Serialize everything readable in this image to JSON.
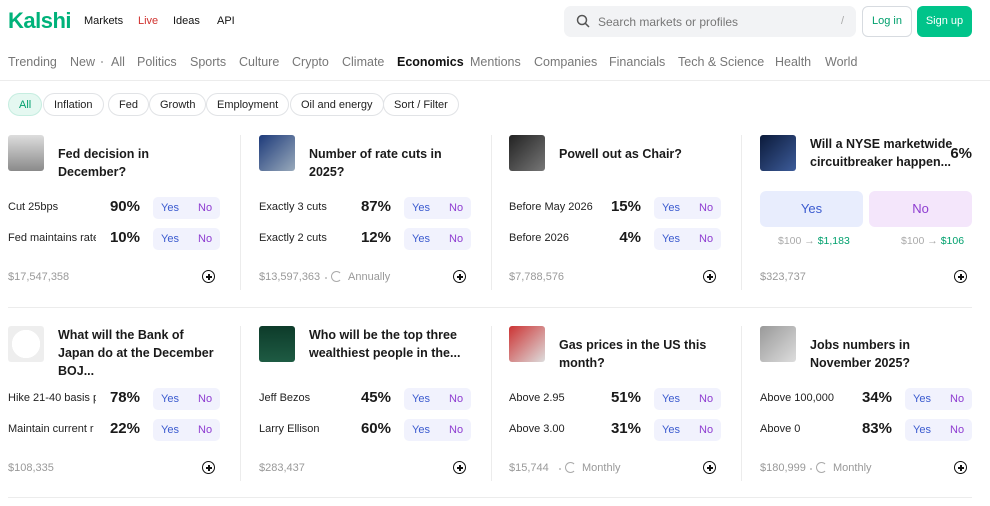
{
  "header": {
    "logo": "Kalshi",
    "nav": [
      "Markets",
      "Live",
      "Ideas",
      "API"
    ],
    "search_placeholder": "Search markets or profiles",
    "search_shortcut": "/",
    "login": "Log in",
    "signup": "Sign up"
  },
  "categories": [
    "Trending",
    "New",
    "All",
    "Politics",
    "Sports",
    "Culture",
    "Crypto",
    "Climate",
    "Economics",
    "Mentions",
    "Companies",
    "Financials",
    "Tech & Science",
    "Health",
    "World"
  ],
  "filters": [
    "All",
    "Inflation",
    "Fed",
    "Growth",
    "Employment",
    "Oil and energy",
    "Sort / Filter"
  ],
  "buttons": {
    "yes": "Yes",
    "no": "No"
  },
  "markets": [
    {
      "title": "Fed decision in December?",
      "outcomes": [
        {
          "label": "Cut 25bps",
          "chance": "90%"
        },
        {
          "label": "Fed maintains rate",
          "chance": "10%"
        }
      ],
      "volume": "$17,547,358"
    },
    {
      "title": "Number of rate cuts in 2025?",
      "outcomes": [
        {
          "label": "Exactly 3 cuts",
          "chance": "87%"
        },
        {
          "label": "Exactly 2 cuts",
          "chance": "12%"
        }
      ],
      "volume": "$13,597,363",
      "frequency": "Annually"
    },
    {
      "title": "Powell out as Chair?",
      "outcomes": [
        {
          "label": "Before May 2026",
          "chance": "15%"
        },
        {
          "label": "Before 2026",
          "chance": "4%"
        }
      ],
      "volume": "$7,788,576"
    },
    {
      "title": "Will a NYSE marketwide circuitbreaker happen...",
      "chance": "6%",
      "payouts": [
        {
          "stake": "$100",
          "payout": "$1,183"
        },
        {
          "stake": "$100",
          "payout": "$106"
        }
      ],
      "volume": "$323,737"
    },
    {
      "title": "What will the Bank of Japan do at the December BOJ...",
      "outcomes": [
        {
          "label": "Hike 21-40 basis p",
          "chance": "78%"
        },
        {
          "label": "Maintain current r",
          "chance": "22%"
        }
      ],
      "volume": "$108,335"
    },
    {
      "title": "Who will be the top three wealthiest people in the...",
      "outcomes": [
        {
          "label": "Jeff Bezos",
          "chance": "45%"
        },
        {
          "label": "Larry Ellison",
          "chance": "60%"
        }
      ],
      "volume": "$283,437"
    },
    {
      "title": "Gas prices in the US this month?",
      "outcomes": [
        {
          "label": "Above 2.95",
          "chance": "51%"
        },
        {
          "label": "Above 3.00",
          "chance": "31%"
        }
      ],
      "volume": "$15,744",
      "frequency": "Monthly"
    },
    {
      "title": "Jobs numbers in November 2025?",
      "outcomes": [
        {
          "label": "Above 100,000",
          "chance": "34%"
        },
        {
          "label": "Above 0",
          "chance": "83%"
        }
      ],
      "volume": "$180,999",
      "frequency": "Monthly"
    }
  ]
}
